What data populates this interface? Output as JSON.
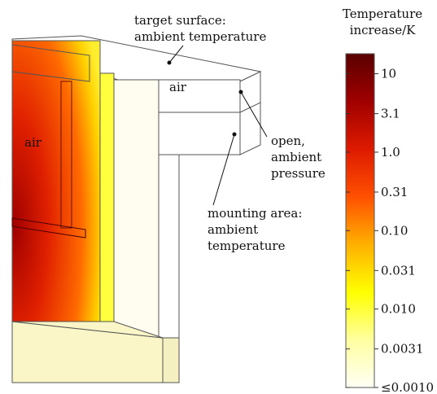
{
  "annotations": {
    "target": [
      "target surface:",
      "ambient temperature"
    ],
    "air_top": "air",
    "air_left": "air",
    "open": [
      "open,",
      "ambient",
      "pressure"
    ],
    "mounting": [
      "mounting area:",
      "ambient",
      "temperature"
    ]
  },
  "colorbar": {
    "title": [
      "Temperature",
      "increase/K"
    ],
    "log": true,
    "lim": [
      0.001,
      18
    ],
    "ticks": [
      10,
      3.1,
      {
        "value": 1,
        "label": "1.0"
      },
      0.31,
      {
        "value": 0.1,
        "label": "0.10"
      },
      0.031,
      {
        "value": 0.01,
        "label": "0.010"
      },
      0.0031,
      {
        "value": 0.001,
        "label": "≤0.0010"
      }
    ],
    "colors": [
      "#fffff6",
      "#ffffa0",
      "#ffff00",
      "#ffb000",
      "#ff5000",
      "#dd1a00",
      "#a00000",
      "#5a0000"
    ]
  }
}
